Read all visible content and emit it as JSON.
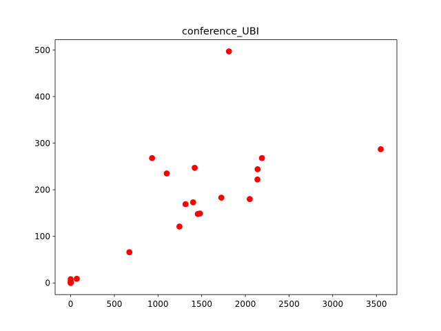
{
  "chart_data": {
    "type": "scatter",
    "title": "conference_UBI",
    "xlabel": "",
    "ylabel": "",
    "xlim": [
      -178,
      3735
    ],
    "ylim": [
      -25,
      522
    ],
    "xticks": [
      0,
      500,
      1000,
      1500,
      2000,
      2500,
      3000,
      3500
    ],
    "yticks": [
      0,
      100,
      200,
      300,
      400,
      500
    ],
    "xtick_labels": [
      "0",
      "500",
      "1000",
      "1500",
      "2000",
      "2500",
      "3000",
      "3500"
    ],
    "ytick_labels": [
      "0",
      "100",
      "200",
      "300",
      "400",
      "500"
    ],
    "grid": false,
    "legend": false,
    "marker_color": "#ff0000",
    "series": [
      {
        "x": [
          1812,
          3550,
          2190,
          932,
          2140,
          1420,
          1100,
          2138,
          1725,
          2050,
          1315,
          1402,
          1480,
          1455,
          1245,
          672,
          70,
          0,
          0,
          0,
          0,
          0
        ],
        "y": [
          497,
          287,
          268,
          268,
          244,
          247,
          235,
          222,
          183,
          180,
          169,
          173,
          149,
          148,
          121,
          66,
          9,
          8,
          3,
          1,
          0,
          0
        ]
      }
    ]
  }
}
